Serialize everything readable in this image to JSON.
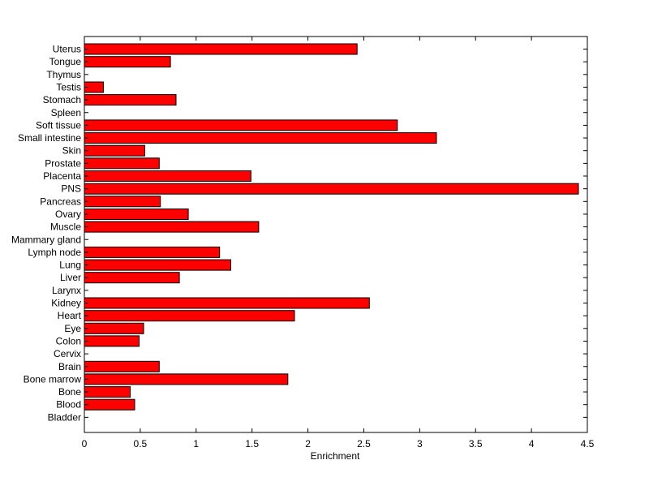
{
  "chart_data": {
    "type": "bar",
    "orientation": "horizontal",
    "title": "",
    "xlabel": "Enrichment",
    "ylabel": "",
    "xlim": [
      0,
      4.5
    ],
    "xticks": [
      "0",
      "0.5",
      "1",
      "1.5",
      "2",
      "2.5",
      "3",
      "3.5",
      "4",
      "4.5"
    ],
    "bar_color": "#ff0000",
    "grid": false,
    "legend": "none",
    "categories": [
      "Uterus",
      "Tongue",
      "Thymus",
      "Testis",
      "Stomach",
      "Spleen",
      "Soft tissue",
      "Small intestine",
      "Skin",
      "Prostate",
      "Placenta",
      "PNS",
      "Pancreas",
      "Ovary",
      "Muscle",
      "Mammary gland",
      "Lymph node",
      "Lung",
      "Liver",
      "Larynx",
      "Kidney",
      "Heart",
      "Eye",
      "Colon",
      "Cervix",
      "Brain",
      "Bone marrow",
      "Bone",
      "Blood",
      "Bladder"
    ],
    "values": [
      2.44,
      0.77,
      0,
      0.17,
      0.82,
      0,
      2.8,
      3.15,
      0.54,
      0.67,
      1.49,
      4.42,
      0.68,
      0.93,
      1.56,
      0,
      1.21,
      1.31,
      0.85,
      0,
      2.55,
      1.88,
      0.53,
      0.49,
      0,
      0.67,
      1.82,
      0.41,
      0.45,
      0
    ]
  }
}
